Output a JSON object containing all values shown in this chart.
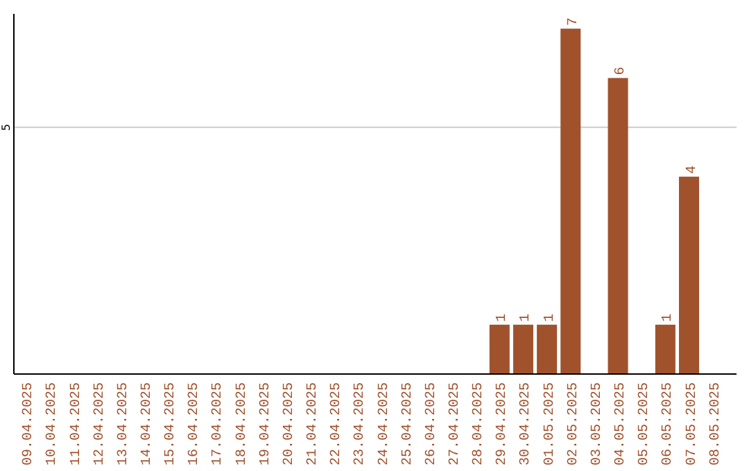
{
  "chart_data": {
    "type": "bar",
    "categories": [
      "09.04.2025",
      "10.04.2025",
      "11.04.2025",
      "12.04.2025",
      "13.04.2025",
      "14.04.2025",
      "15.04.2025",
      "16.04.2025",
      "17.04.2025",
      "18.04.2025",
      "19.04.2025",
      "20.04.2025",
      "21.04.2025",
      "22.04.2025",
      "23.04.2025",
      "24.04.2025",
      "25.04.2025",
      "26.04.2025",
      "27.04.2025",
      "28.04.2025",
      "29.04.2025",
      "30.04.2025",
      "01.05.2025",
      "02.05.2025",
      "03.05.2025",
      "04.05.2025",
      "05.05.2025",
      "06.05.2025",
      "07.05.2025",
      "08.05.2025"
    ],
    "values": [
      null,
      null,
      null,
      null,
      null,
      null,
      null,
      null,
      null,
      null,
      null,
      null,
      null,
      null,
      null,
      null,
      null,
      null,
      null,
      null,
      1,
      1,
      1,
      7,
      null,
      6,
      null,
      1,
      4,
      null
    ],
    "color": "#a0522d",
    "ylim": [
      0,
      7.3
    ],
    "yticks": [
      5
    ],
    "grid": "y",
    "data_labels": true
  }
}
